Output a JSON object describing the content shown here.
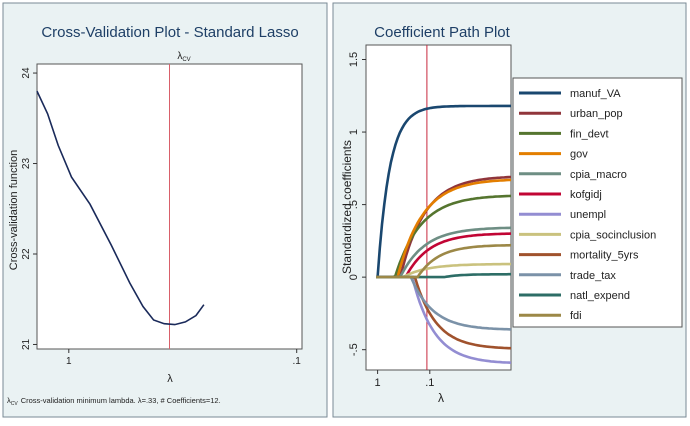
{
  "chart_data": [
    {
      "type": "line",
      "title": "Cross-Validation Plot - Standard Lasso",
      "xlabel": "λ",
      "ylabel": "Cross-validation function",
      "vline_label": "λ",
      "vline_sub": "CV",
      "xtick_labels": [
        "1",
        ".1"
      ],
      "yticks": [
        21,
        22,
        23,
        24
      ],
      "ylim": [
        20.95,
        24.1
      ],
      "xlim": [
        0,
        1
      ],
      "xtick_positions": [
        0.12,
        0.98
      ],
      "vline_x": 0.5,
      "x": [
        0.0,
        0.04,
        0.08,
        0.13,
        0.2,
        0.28,
        0.35,
        0.4,
        0.44,
        0.48,
        0.52,
        0.56,
        0.6,
        0.63
      ],
      "y": [
        23.8,
        23.55,
        23.2,
        22.85,
        22.55,
        22.1,
        21.68,
        21.42,
        21.27,
        21.23,
        21.22,
        21.25,
        21.32,
        21.44
      ],
      "footnote_sym": "λ",
      "footnote_sub": "CV",
      "footnote": "Cross-validation minimum lambda.  λ=.33, # Coefficients=12."
    },
    {
      "type": "line",
      "title": "Coefficient Path Plot",
      "xlabel": "λ",
      "ylabel": "Standardized coefficients",
      "xtick_labels": [
        "1",
        ".1"
      ],
      "xtick_positions": [
        0.08,
        0.44
      ],
      "ytick_labels": [
        "-.5",
        "0",
        ".5",
        "1",
        "1.5"
      ],
      "yticks": [
        -0.5,
        0,
        0.5,
        1,
        1.5
      ],
      "ylim": [
        -0.64,
        1.6
      ],
      "xlim": [
        0,
        1
      ],
      "vline_x": 0.42,
      "series": [
        {
          "name": "manuf_VA",
          "color": "#1a476f",
          "start": 0.0,
          "end": 1.18
        },
        {
          "name": "urban_pop",
          "color": "#90353b",
          "start": 0.17,
          "end": 0.69
        },
        {
          "name": "fin_devt",
          "color": "#55752f",
          "start": 0.13,
          "end": 0.56
        },
        {
          "name": "gov",
          "color": "#e37e00",
          "start": 0.15,
          "end": 0.67
        },
        {
          "name": "cpia_macro",
          "color": "#6e8e84",
          "start": 0.17,
          "end": 0.34
        },
        {
          "name": "kofgidj",
          "color": "#c10534",
          "start": 0.21,
          "end": 0.3
        },
        {
          "name": "unempl",
          "color": "#938dd2",
          "start": 0.26,
          "end": -0.59
        },
        {
          "name": "cpia_socinclusion",
          "color": "#cac27e",
          "start": 0.19,
          "end": 0.09
        },
        {
          "name": "mortality_5yrs",
          "color": "#a0522d",
          "start": 0.28,
          "end": -0.49
        },
        {
          "name": "trade_tax",
          "color": "#7b92a8",
          "start": 0.25,
          "end": -0.36
        },
        {
          "name": "natl_expend",
          "color": "#2d6d66",
          "start": 0.5,
          "end": 0.02
        },
        {
          "name": "fdi",
          "color": "#9c8847",
          "start": 0.3,
          "end": 0.22
        }
      ]
    }
  ]
}
